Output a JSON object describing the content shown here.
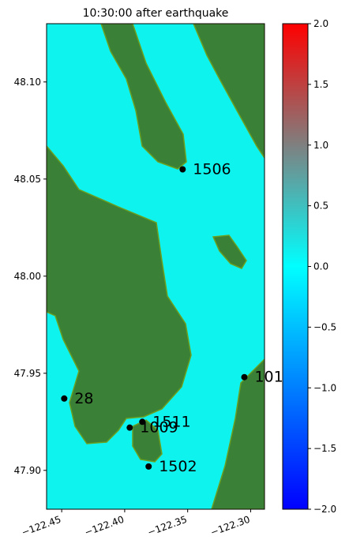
{
  "chart_data": {
    "type": "scatter",
    "title": "10:30:00 after earthquake",
    "points": [
      {
        "name": "1506",
        "x": -122.354,
        "y": 48.055
      },
      {
        "name": "101",
        "x": -122.305,
        "y": 47.948
      },
      {
        "name": "28",
        "x": -122.448,
        "y": 47.937
      },
      {
        "name": "1511",
        "x": -122.386,
        "y": 47.925
      },
      {
        "name": "1009",
        "x": -122.396,
        "y": 47.922
      },
      {
        "name": "1502",
        "x": -122.381,
        "y": 47.902
      }
    ],
    "color": "#000000",
    "xlim": [
      -122.462,
      -122.289
    ],
    "ylim": [
      47.88,
      48.13
    ],
    "xticks": [
      {
        "value": -122.45,
        "label": "−122.45"
      },
      {
        "value": -122.4,
        "label": "−122.40"
      },
      {
        "value": -122.35,
        "label": "−122.35"
      },
      {
        "value": -122.3,
        "label": "−122.30"
      }
    ],
    "yticks": [
      {
        "value": 47.9,
        "label": "47.90"
      },
      47.95,
      {
        "value": 48.0,
        "label": "48.00"
      },
      48.05,
      {
        "value": 48.1,
        "label": "48.10"
      }
    ],
    "colorbar": {
      "lim": [
        -2,
        2
      ],
      "colors": [
        "#0000ff",
        "#00ffff",
        "#ff0000"
      ],
      "ticks": [
        {
          "value": -2,
          "label": "−2.0"
        },
        {
          "value": -1.5,
          "label": "−1.5"
        },
        {
          "value": -1,
          "label": "−1.0"
        },
        {
          "value": -0.5,
          "label": "−0.5"
        },
        {
          "value": 0,
          "label": "0.0"
        },
        {
          "value": 0.5,
          "label": "0.5"
        },
        {
          "value": 1,
          "label": "1.0"
        },
        {
          "value": 1.5,
          "label": "1.5"
        },
        {
          "value": 2,
          "label": "2.0"
        }
      ]
    }
  }
}
